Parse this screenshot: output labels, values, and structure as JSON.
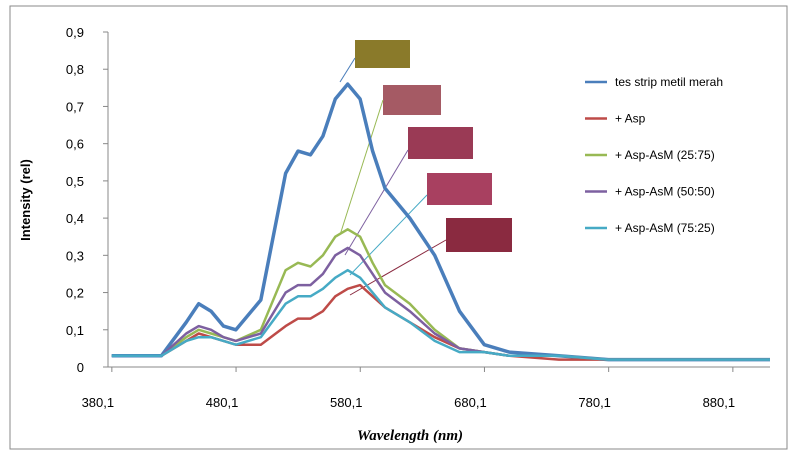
{
  "chart_data": {
    "type": "line",
    "y_label": "Intensity (rel)",
    "x_label": "Wavelength (nm)",
    "x": [
      380,
      400,
      420,
      440,
      450,
      460,
      470,
      480,
      500,
      520,
      530,
      540,
      550,
      560,
      570,
      580,
      590,
      600,
      620,
      640,
      660,
      680,
      700,
      740,
      780,
      820,
      860,
      900,
      910
    ],
    "series": [
      {
        "name": "tes strip metil merah",
        "color": "#4a7ebb",
        "values": [
          0.03,
          0.03,
          0.03,
          0.12,
          0.17,
          0.15,
          0.11,
          0.1,
          0.18,
          0.52,
          0.58,
          0.57,
          0.62,
          0.72,
          0.76,
          0.72,
          0.58,
          0.48,
          0.4,
          0.3,
          0.15,
          0.06,
          0.04,
          0.03,
          0.02,
          0.02,
          0.02,
          0.02,
          0.02
        ]
      },
      {
        "name": "+ Asp",
        "color": "#be4b48",
        "values": [
          0.03,
          0.03,
          0.03,
          0.07,
          0.09,
          0.08,
          0.07,
          0.06,
          0.06,
          0.11,
          0.13,
          0.13,
          0.15,
          0.19,
          0.21,
          0.22,
          0.19,
          0.16,
          0.12,
          0.08,
          0.05,
          0.04,
          0.03,
          0.02,
          0.02,
          0.02,
          0.02,
          0.02,
          0.02
        ]
      },
      {
        "name": "+ Asp-AsM (25:75)",
        "color": "#98b954",
        "values": [
          0.03,
          0.03,
          0.03,
          0.08,
          0.1,
          0.09,
          0.08,
          0.07,
          0.1,
          0.26,
          0.28,
          0.27,
          0.3,
          0.35,
          0.37,
          0.35,
          0.28,
          0.22,
          0.17,
          0.1,
          0.05,
          0.04,
          0.03,
          0.03,
          0.02,
          0.02,
          0.02,
          0.02,
          0.02
        ]
      },
      {
        "name": "+ Asp-AsM (50:50)",
        "color": "#7d60a0",
        "values": [
          0.03,
          0.03,
          0.03,
          0.09,
          0.11,
          0.1,
          0.08,
          0.07,
          0.09,
          0.2,
          0.22,
          0.22,
          0.25,
          0.3,
          0.32,
          0.3,
          0.25,
          0.2,
          0.15,
          0.09,
          0.05,
          0.04,
          0.03,
          0.03,
          0.02,
          0.02,
          0.02,
          0.02,
          0.02
        ]
      },
      {
        "name": "+ Asp-AsM (75:25)",
        "color": "#46aac5",
        "values": [
          0.03,
          0.03,
          0.03,
          0.07,
          0.08,
          0.08,
          0.07,
          0.06,
          0.08,
          0.17,
          0.19,
          0.19,
          0.21,
          0.24,
          0.26,
          0.24,
          0.2,
          0.16,
          0.12,
          0.07,
          0.04,
          0.04,
          0.03,
          0.03,
          0.02,
          0.02,
          0.02,
          0.02,
          0.02
        ]
      }
    ],
    "xlim": [
      377,
      910
    ],
    "xticks": [
      {
        "value": 380.1,
        "label": "380,1"
      },
      {
        "value": 480.1,
        "label": "480,1"
      },
      {
        "value": 580.1,
        "label": "580,1"
      },
      {
        "value": 680.1,
        "label": "680,1"
      },
      {
        "value": 780.1,
        "label": "780,1"
      },
      {
        "value": 880.1,
        "label": "880,1"
      }
    ],
    "ylim": [
      0,
      0.9
    ],
    "yticks": [
      0,
      {
        "value": 0.1,
        "label": "0,1"
      },
      {
        "value": 0.2,
        "label": "0,2"
      },
      {
        "value": 0.3,
        "label": "0,3"
      },
      {
        "value": 0.4,
        "label": "0,4"
      },
      {
        "value": 0.5,
        "label": "0,5"
      },
      {
        "value": 0.6,
        "label": "0,6"
      },
      {
        "value": 0.7,
        "label": "0,7"
      },
      {
        "value": 0.8,
        "label": "0,8"
      },
      {
        "value": 0.9,
        "label": "0,9"
      }
    ],
    "grid": false,
    "legend": "right"
  }
}
